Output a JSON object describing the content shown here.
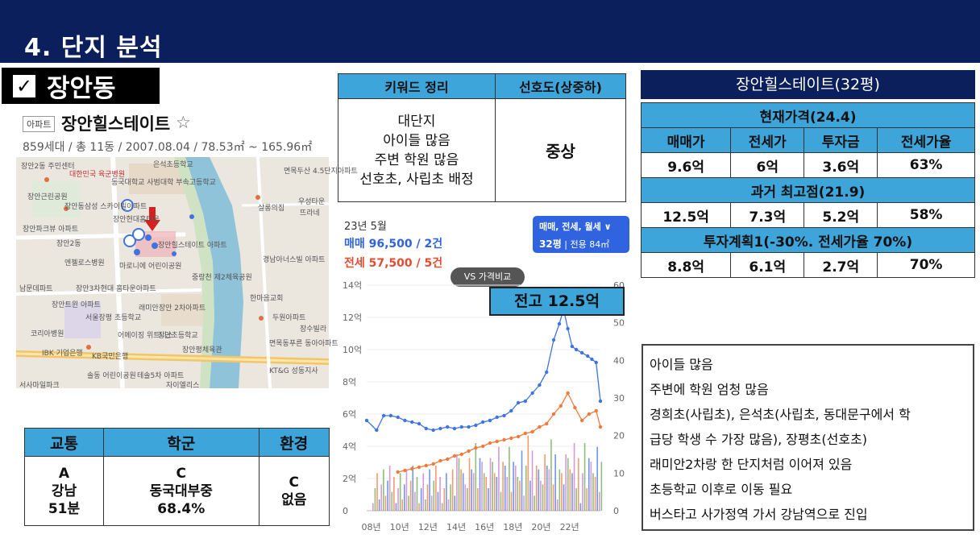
{
  "header": {
    "title": "4. 단지 분석"
  },
  "area": {
    "check": "✓",
    "name": "장안동"
  },
  "apartment": {
    "type_tag": "아파트",
    "name": "장안힐스테이트",
    "star": "☆",
    "info": "859세대 / 총 11동 / 2007.08.04 / 78.53㎡ ~ 165.96㎡"
  },
  "map": {
    "labels": [
      "장안2동 주민센터",
      "대한민국 육군병원",
      "동국대학교 사범대학 부속고등학교",
      "은석초등학교",
      "면목두산 4.5단지아파트",
      "장안근린공원",
      "장안동삼성 스카이빌아파트",
      "살롱의집",
      "우성타운",
      "뜨라네",
      "장안파크뷰 아파트",
      "장안현대홈타운",
      "장안힐스테이트 아파트",
      "장안2동",
      "엔젤로스병원",
      "마로니에 어린이공원",
      "중랑천 제2체육공원",
      "경남아너스빌 아파트",
      "남문데파트",
      "장안3차현대 홈타운아파트",
      "래미안장안 2차아파트",
      "한마음교회",
      "장안트윈 아파트",
      "서울장평 초등학교",
      "두원아파트",
      "코리아병원",
      "어메이징 위트니스",
      "장안초등학교",
      "장수빌라",
      "IBK 기업은행",
      "KB국민은행",
      "장안평체육관",
      "면목동푸른 동아아파트",
      "솔동 어린이공원",
      "테솔5차 아파트",
      "자이엘리스",
      "KT&G 성동지사",
      "서사마일파크"
    ]
  },
  "keywords": {
    "headers": [
      "키워드 정리",
      "선호도(상중하)"
    ],
    "lines": [
      "대단지",
      "아이들 많음",
      "주변 학원 많음",
      "선호초, 사립초 배정"
    ],
    "preference": "중상"
  },
  "price": {
    "title": "장안힐스테이트(32평)",
    "columns": [
      "매매가",
      "전세가",
      "투자금",
      "전세가율"
    ],
    "sections": [
      {
        "label": "현재가격(24.4)",
        "values": [
          "9.6억",
          "6억",
          "3.6억",
          "63%"
        ]
      },
      {
        "label": "과거 최고점(21.9)",
        "values": [
          "12.5억",
          "7.3억",
          "5.2억",
          "58%"
        ]
      },
      {
        "label": "투자계획1(-30%. 전세가율 70%)",
        "values": [
          "8.8억",
          "6.1억",
          "2.7억",
          "70%"
        ]
      }
    ]
  },
  "chart": {
    "date": "23년 5월",
    "sale": "매매 96,500 / 2건",
    "jeonse": "전세 57,500 / 5건",
    "filter": {
      "line1": "매매, 전세, 월세 ∨",
      "size": "32평",
      "area": "전용 84㎡"
    },
    "vs_label": "VS 가격비교",
    "peak_label": "전고 12.5억",
    "colors": {
      "sale": "#3f74e0",
      "jeonse": "#f07a3c",
      "volume": "#c878c8"
    }
  },
  "chart_data": {
    "type": "line",
    "title": "",
    "xlabel": "",
    "ylabel": "",
    "x_ticks": [
      "08년",
      "10년",
      "12년",
      "14년",
      "16년",
      "18년",
      "20년",
      "22년"
    ],
    "y_ticks_left": [
      "0",
      "2억",
      "4억",
      "6억",
      "8억",
      "10억",
      "12억",
      "14억"
    ],
    "y_ticks_right": [
      "0",
      "10",
      "20",
      "30",
      "40",
      "50",
      "60"
    ],
    "ylim": [
      0,
      14
    ],
    "y2lim": [
      0,
      60
    ],
    "xlim": [
      2007.8,
      2024.3
    ],
    "series": [
      {
        "axis": "left",
        "x": [
          2007.8,
          2008.5,
          2009.0,
          2009.5,
          2010.0,
          2010.5,
          2011.0,
          2011.5,
          2012.0,
          2012.5,
          2013.0,
          2013.5,
          2014.0,
          2014.5,
          2015.0,
          2015.5,
          2016.0,
          2016.5,
          2017.0,
          2017.5,
          2018.0,
          2018.5,
          2019.0,
          2019.5,
          2020.0,
          2020.5,
          2021.0,
          2021.4,
          2021.7,
          2022.0,
          2022.3,
          2022.6,
          2023.0,
          2023.4,
          2023.7,
          2024.0,
          2024.3
        ],
        "values": [
          5.6,
          5.0,
          5.9,
          5.9,
          5.8,
          5.6,
          5.5,
          5.4,
          5.1,
          5.0,
          5.1,
          5.2,
          5.1,
          5.2,
          5.2,
          5.3,
          5.5,
          5.6,
          5.8,
          5.9,
          6.2,
          6.7,
          6.8,
          7.3,
          7.8,
          8.6,
          10.6,
          11.6,
          12.5,
          11.3,
          10.2,
          10.0,
          9.8,
          9.6,
          9.4,
          9.2,
          6.8
        ]
      },
      {
        "axis": "left",
        "x": [
          2010.0,
          2010.5,
          2011.0,
          2011.5,
          2012.0,
          2012.5,
          2013.0,
          2013.5,
          2014.0,
          2014.5,
          2015.0,
          2015.5,
          2016.0,
          2016.5,
          2017.0,
          2017.5,
          2018.0,
          2018.5,
          2019.0,
          2019.5,
          2020.0,
          2020.5,
          2021.0,
          2021.5,
          2022.0,
          2022.5,
          2023.0,
          2023.5,
          2024.0,
          2024.3
        ],
        "values": [
          2.4,
          2.5,
          2.6,
          2.7,
          2.8,
          2.9,
          3.1,
          3.2,
          3.4,
          3.5,
          3.7,
          3.9,
          4.0,
          4.2,
          4.3,
          4.4,
          4.5,
          4.6,
          4.8,
          4.9,
          5.2,
          5.4,
          6.0,
          6.5,
          7.3,
          6.4,
          5.6,
          6.0,
          6.2,
          5.2
        ]
      }
    ]
  },
  "categories": {
    "headers": [
      "교통",
      "학군",
      "환경"
    ],
    "values": [
      {
        "line1": "A",
        "line2": "강남",
        "line3": "51분"
      },
      {
        "line1": "C",
        "line2": "동국대부중",
        "line3": "68.4%"
      },
      {
        "line1": "C",
        "line2": "없음",
        "line3": ""
      }
    ]
  },
  "notes": [
    "아이들 많음",
    "주변에 학원 엄청 많음",
    "경희초(사립초), 은석초(사립초, 동대문구에서 학",
    "급당 학생 수 가장 많음), 장평초(선호초)",
    "래미안2차랑 한 단지처럼 이어져 있음",
    "초등학교 이후로 이동 필요",
    "버스타고 사가정역 가서 강남역으로 진입"
  ]
}
